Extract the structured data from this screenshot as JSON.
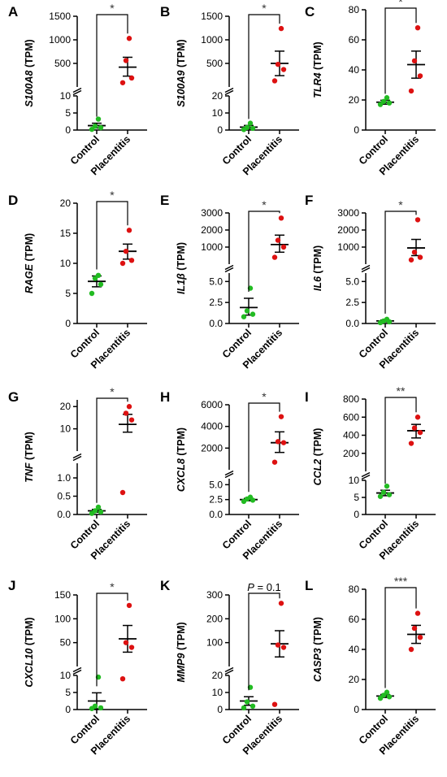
{
  "figure": {
    "categories": [
      "Control",
      "Placentitis"
    ]
  },
  "colors": {
    "control": "#22bb22",
    "placentitis": "#dd1111",
    "axis": "#000000"
  },
  "chart_data": [
    {
      "panel": "A",
      "type": "scatter",
      "gene": "S100A8",
      "unit": " (TPM)",
      "categories": [
        "Control",
        "Placentitis"
      ],
      "y_segments": [
        {
          "range": [
            0,
            10
          ],
          "ticks": [
            "0",
            "5",
            "10"
          ],
          "tick_values": [
            0,
            5,
            10
          ]
        },
        {
          "range": [
            0,
            1500
          ],
          "ticks": [
            "500",
            "1000",
            "1500"
          ],
          "tick_values": [
            500,
            1000,
            1500
          ]
        }
      ],
      "series": [
        {
          "points": [
            0.2,
            0.7,
            1.1,
            3.2
          ],
          "mean": 1.3,
          "sem": [
            0.6,
            2.0
          ]
        },
        {
          "points": [
            90,
            190,
            560,
            1030
          ],
          "mean": 420,
          "sem": [
            230,
            630
          ]
        }
      ],
      "significance": "*"
    },
    {
      "panel": "B",
      "type": "scatter",
      "gene": "S100A9",
      "unit": " (TPM)",
      "categories": [
        "Control",
        "Placentitis"
      ],
      "y_segments": [
        {
          "range": [
            0,
            20
          ],
          "ticks": [
            "0",
            "10",
            "20"
          ],
          "tick_values": [
            0,
            10,
            20
          ]
        },
        {
          "range": [
            0,
            1500
          ],
          "ticks": [
            "500",
            "1000",
            "1500"
          ],
          "tick_values": [
            500,
            1000,
            1500
          ]
        }
      ],
      "series": [
        {
          "points": [
            0.3,
            1.0,
            1.5,
            4.0
          ],
          "mean": 1.7,
          "sem": [
            0.7,
            2.7
          ]
        },
        {
          "points": [
            130,
            370,
            480,
            1240
          ],
          "mean": 500,
          "sem": [
            240,
            760
          ]
        }
      ],
      "significance": "*"
    },
    {
      "panel": "C",
      "type": "scatter",
      "gene": "TLR4",
      "unit": " (TPM)",
      "categories": [
        "Control",
        "Placentitis"
      ],
      "y_segments": [
        {
          "range": [
            0,
            80
          ],
          "ticks": [
            "0",
            "20",
            "40",
            "60",
            "80"
          ],
          "tick_values": [
            0,
            20,
            40,
            60,
            80
          ]
        }
      ],
      "series": [
        {
          "points": [
            17,
            18,
            19,
            21.5
          ],
          "mean": 18.5,
          "sem": [
            17.2,
            19.8
          ]
        },
        {
          "points": [
            26,
            36,
            46,
            68
          ],
          "mean": 43.5,
          "sem": [
            34.5,
            52.5
          ]
        }
      ],
      "significance": "*"
    },
    {
      "panel": "D",
      "type": "scatter",
      "gene": "RAGE",
      "unit": " (TPM)",
      "categories": [
        "Control",
        "Placentitis"
      ],
      "y_segments": [
        {
          "range": [
            0,
            20
          ],
          "ticks": [
            "0",
            "5",
            "10",
            "15",
            "20"
          ],
          "tick_values": [
            0,
            5,
            10,
            15,
            20
          ]
        }
      ],
      "series": [
        {
          "points": [
            5,
            6.5,
            7.5,
            8
          ],
          "mean": 7.0,
          "sem": [
            6.1,
            7.9
          ]
        },
        {
          "points": [
            10,
            10.5,
            12,
            15.5
          ],
          "mean": 12.0,
          "sem": [
            10.7,
            13.2
          ]
        }
      ],
      "significance": "*"
    },
    {
      "panel": "E",
      "type": "scatter",
      "gene": "IL1β",
      "unit": " (TPM)",
      "categories": [
        "Control",
        "Placentitis"
      ],
      "y_segments": [
        {
          "range": [
            0,
            6
          ],
          "ticks": [
            "0.0",
            "2.5",
            "5.0"
          ],
          "tick_values": [
            0,
            2.5,
            5
          ]
        },
        {
          "range": [
            0,
            3000
          ],
          "ticks": [
            "1000",
            "2000",
            "3000"
          ],
          "tick_values": [
            1000,
            2000,
            3000
          ]
        }
      ],
      "series": [
        {
          "points": [
            0.8,
            1.1,
            1.5,
            4.2
          ],
          "mean": 1.9,
          "sem": [
            1.0,
            3.0
          ]
        },
        {
          "points": [
            400,
            1000,
            1400,
            2700
          ],
          "mean": 1150,
          "sem": [
            700,
            1700
          ]
        }
      ],
      "significance": "*"
    },
    {
      "panel": "F",
      "type": "scatter",
      "gene": "IL6",
      "unit": " (TPM)",
      "categories": [
        "Control",
        "Placentitis"
      ],
      "y_segments": [
        {
          "range": [
            0,
            6
          ],
          "ticks": [
            "0.0",
            "2.5",
            "5.0"
          ],
          "tick_values": [
            0,
            2.5,
            5
          ]
        },
        {
          "range": [
            0,
            3000
          ],
          "ticks": [
            "1000",
            "2000",
            "3000"
          ],
          "tick_values": [
            1000,
            2000,
            3000
          ]
        }
      ],
      "series": [
        {
          "points": [
            0.1,
            0.2,
            0.3,
            0.5
          ],
          "mean": 0.3,
          "sem": [
            0.2,
            0.4
          ]
        },
        {
          "points": [
            250,
            400,
            700,
            2600
          ],
          "mean": 950,
          "sem": [
            500,
            1450
          ]
        }
      ],
      "significance": "*"
    },
    {
      "panel": "G",
      "type": "scatter",
      "gene": "TNF",
      "unit": " (TPM)",
      "categories": [
        "Control",
        "Placentitis"
      ],
      "y_segments": [
        {
          "range": [
            0,
            1.4
          ],
          "ticks": [
            "0.0",
            "0.5",
            "1.0"
          ],
          "tick_values": [
            0,
            0.5,
            1
          ]
        },
        {
          "range": [
            0,
            23
          ],
          "ticks": [
            "10",
            "20"
          ],
          "tick_values": [
            10,
            20
          ]
        }
      ],
      "series": [
        {
          "points": [
            0.03,
            0.07,
            0.1,
            0.2
          ],
          "mean": 0.1,
          "sem": [
            0.06,
            0.14
          ]
        },
        {
          "points": [
            0.6,
            14,
            17,
            20
          ],
          "mean": 12,
          "sem": [
            8.5,
            16.5
          ]
        }
      ],
      "significance": "*"
    },
    {
      "panel": "H",
      "type": "scatter",
      "gene": "CXCL8",
      "unit": " (TPM)",
      "categories": [
        "Control",
        "Placentitis"
      ],
      "y_segments": [
        {
          "range": [
            0,
            6
          ],
          "ticks": [
            "0.0",
            "2.5",
            "5.0"
          ],
          "tick_values": [
            0,
            2.5,
            5
          ]
        },
        {
          "range": [
            0,
            6000
          ],
          "ticks": [
            "2000",
            "4000",
            "6000"
          ],
          "tick_values": [
            2000,
            4000,
            6000
          ]
        }
      ],
      "series": [
        {
          "points": [
            2.2,
            2.4,
            2.6,
            2.9
          ],
          "mean": 2.5,
          "sem": [
            2.3,
            2.7
          ]
        },
        {
          "points": [
            700,
            2500,
            2600,
            4900
          ],
          "mean": 2500,
          "sem": [
            1600,
            3500
          ]
        }
      ],
      "significance": "*"
    },
    {
      "panel": "I",
      "type": "scatter",
      "gene": "CCL2",
      "unit": " (TPM)",
      "categories": [
        "Control",
        "Placentitis"
      ],
      "y_segments": [
        {
          "range": [
            0,
            10
          ],
          "ticks": [
            "0",
            "5",
            "10"
          ],
          "tick_values": [
            0,
            5,
            10
          ]
        },
        {
          "range": [
            0,
            800
          ],
          "ticks": [
            "200",
            "400",
            "600",
            "800"
          ],
          "tick_values": [
            200,
            400,
            600,
            800
          ]
        }
      ],
      "series": [
        {
          "points": [
            5.3,
            5.8,
            6.5,
            8.3
          ],
          "mean": 6.3,
          "sem": [
            5.5,
            7.1
          ]
        },
        {
          "points": [
            310,
            430,
            480,
            600
          ],
          "mean": 450,
          "sem": [
            370,
            520
          ]
        }
      ],
      "significance": "**"
    },
    {
      "panel": "J",
      "type": "scatter",
      "gene": "CXCL10",
      "unit": " (TPM)",
      "categories": [
        "Control",
        "Placentitis"
      ],
      "y_segments": [
        {
          "range": [
            0,
            10
          ],
          "ticks": [
            "0",
            "5",
            "10"
          ],
          "tick_values": [
            0,
            5,
            10
          ]
        },
        {
          "range": [
            0,
            150
          ],
          "ticks": [
            "50",
            "100",
            "150"
          ],
          "tick_values": [
            50,
            100,
            150
          ]
        }
      ],
      "series": [
        {
          "points": [
            0.3,
            0.5,
            1.0,
            9.5
          ],
          "mean": 2.5,
          "sem": [
            0.2,
            4.9
          ]
        },
        {
          "points": [
            9,
            40,
            50,
            128
          ],
          "mean": 58,
          "sem": [
            30,
            86
          ]
        }
      ],
      "significance": "*"
    },
    {
      "panel": "K",
      "type": "scatter",
      "gene": "MMP9",
      "unit": " (TPM)",
      "categories": [
        "Control",
        "Placentitis"
      ],
      "y_segments": [
        {
          "range": [
            0,
            20
          ],
          "ticks": [
            "0",
            "10",
            "20"
          ],
          "tick_values": [
            0,
            10,
            20
          ]
        },
        {
          "range": [
            0,
            300
          ],
          "ticks": [
            "100",
            "200",
            "300"
          ],
          "tick_values": [
            100,
            200,
            300
          ]
        }
      ],
      "series": [
        {
          "points": [
            1.0,
            2.0,
            4.5,
            13
          ],
          "mean": 5,
          "sem": [
            2.5,
            7.5
          ]
        },
        {
          "points": [
            3,
            80,
            90,
            265
          ],
          "mean": 95,
          "sem": [
            40,
            150
          ]
        }
      ],
      "significance": "P = 0.1"
    },
    {
      "panel": "L",
      "type": "scatter",
      "gene": "CASP3",
      "unit": " (TPM)",
      "categories": [
        "Control",
        "Placentitis"
      ],
      "y_segments": [
        {
          "range": [
            0,
            80
          ],
          "ticks": [
            "0",
            "20",
            "40",
            "60",
            "80"
          ],
          "tick_values": [
            0,
            20,
            40,
            60,
            80
          ]
        }
      ],
      "series": [
        {
          "points": [
            7.5,
            8.5,
            9.5,
            11.5
          ],
          "mean": 9,
          "sem": [
            8,
            10
          ]
        },
        {
          "points": [
            40,
            48,
            54,
            64
          ],
          "mean": 50,
          "sem": [
            44,
            56
          ]
        }
      ],
      "significance": "***"
    }
  ]
}
